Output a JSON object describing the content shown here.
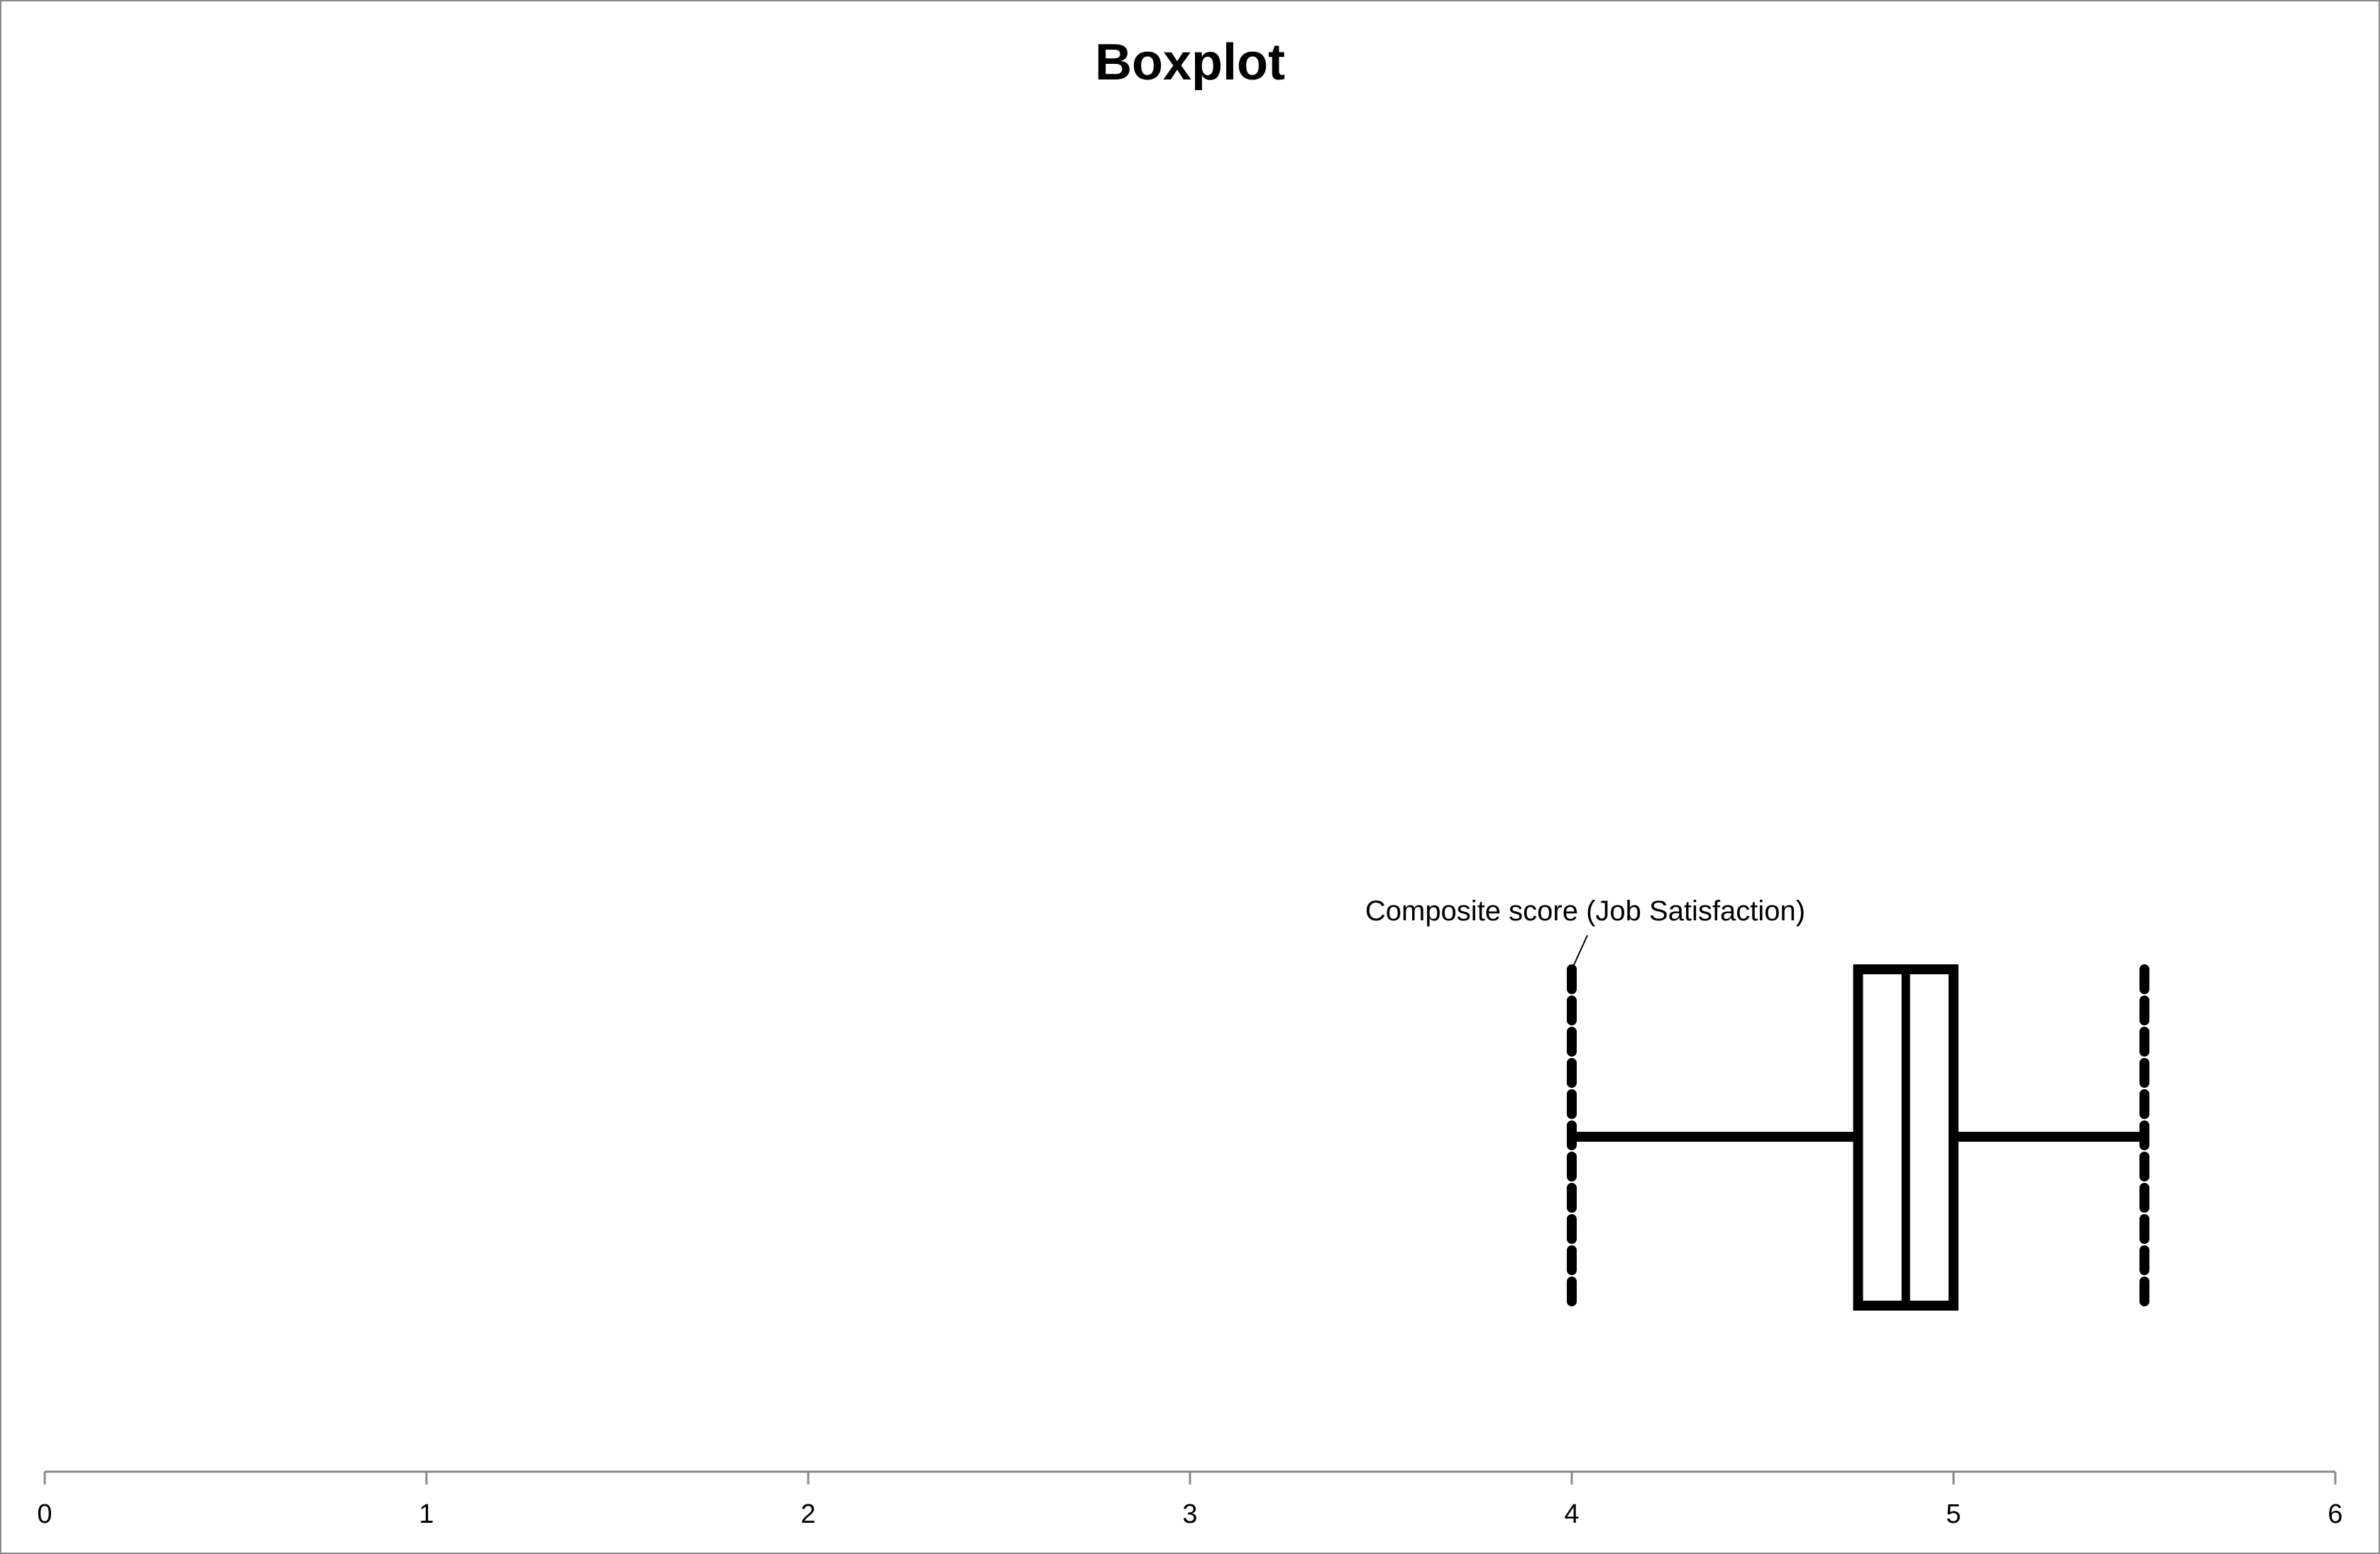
{
  "chart_data": {
    "type": "boxplot",
    "title": "Boxplot",
    "orientation": "horizontal",
    "xlim": [
      0,
      6
    ],
    "x_ticks": [
      "0",
      "1",
      "2",
      "3",
      "4",
      "5",
      "6"
    ],
    "grid": false,
    "series": [
      {
        "name": "Composite score (Job Satisfaction)",
        "min": 4,
        "q1": 4.75,
        "median": 4.875,
        "q3": 5,
        "max": 5.5
      }
    ],
    "colors": {
      "box": "#000000",
      "axis": "#8a8a8a"
    }
  }
}
